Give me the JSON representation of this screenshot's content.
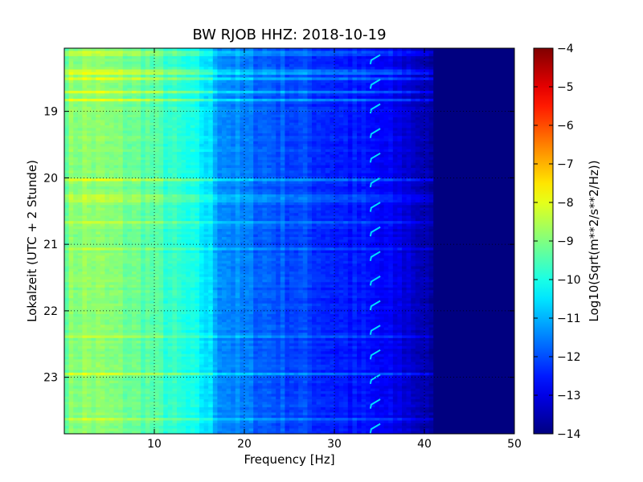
{
  "chart_data": {
    "type": "heatmap",
    "title": "BW RJOB HHZ: 2018-10-19",
    "xlabel": "Frequency [Hz]",
    "ylabel": "Lokalzeit (UTC + 2 Stunde)",
    "colorbar_label": "Log10(Sqrt(m**2/s**2/Hz))",
    "xlim": [
      0,
      50
    ],
    "ylim": [
      18.05,
      23.85
    ],
    "y_inverted": true,
    "x_ticks": [
      10,
      20,
      30,
      40,
      50
    ],
    "x_tick_labels": [
      "10",
      "20",
      "30",
      "40",
      "50"
    ],
    "y_ticks": [
      19,
      20,
      21,
      22,
      23
    ],
    "y_tick_labels": [
      "19",
      "20",
      "21",
      "22",
      "23"
    ],
    "color_range": [
      -14,
      -4
    ],
    "colorbar_ticks": [
      -4,
      -5,
      -6,
      -7,
      -8,
      -9,
      -10,
      -11,
      -12,
      -13,
      -14
    ],
    "colorbar_tick_labels": [
      "−4",
      "−5",
      "−6",
      "−7",
      "−8",
      "−9",
      "−10",
      "−11",
      "−12",
      "−13",
      "−14"
    ],
    "colormap": "jet",
    "grid": true,
    "grid_style": "dotted",
    "spectral_profile": [
      {
        "freq": 0,
        "value": -9.1
      },
      {
        "freq": 2,
        "value": -8.8
      },
      {
        "freq": 5,
        "value": -9.0
      },
      {
        "freq": 9,
        "value": -9.3
      },
      {
        "freq": 12,
        "value": -9.8
      },
      {
        "freq": 15,
        "value": -10.3
      },
      {
        "freq": 16.5,
        "value": -10.7
      },
      {
        "freq": 17,
        "value": -11.2
      },
      {
        "freq": 20,
        "value": -11.6
      },
      {
        "freq": 25,
        "value": -12.0
      },
      {
        "freq": 30,
        "value": -12.4
      },
      {
        "freq": 35,
        "value": -12.8
      },
      {
        "freq": 38,
        "value": -13.1
      },
      {
        "freq": 40,
        "value": -13.5
      },
      {
        "freq": 41,
        "value": -14.0
      },
      {
        "freq": 50,
        "value": -14.0
      }
    ],
    "hourly_feature_frequency": 34.5
  }
}
